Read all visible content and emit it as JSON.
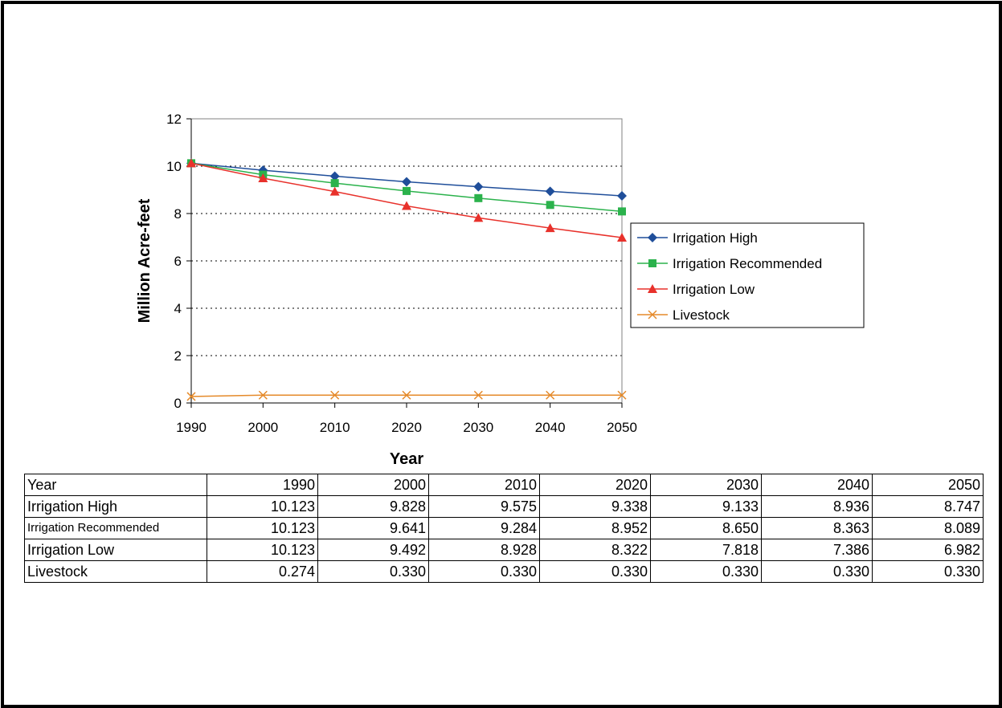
{
  "chart_data": {
    "type": "line",
    "x": [
      1990,
      2000,
      2010,
      2020,
      2030,
      2040,
      2050
    ],
    "xlabel": "Year",
    "ylabel": "Million Acre-feet",
    "ylim": [
      0,
      12
    ],
    "yticks": [
      0,
      2,
      4,
      6,
      8,
      10,
      12
    ],
    "grid": "horizontal dotted",
    "legend_position": "right",
    "series": [
      {
        "name": "Irrigation High",
        "color": "#1F4E9A",
        "marker": "diamond",
        "values": [
          10.123,
          9.828,
          9.575,
          9.338,
          9.133,
          8.936,
          8.747
        ]
      },
      {
        "name": "Irrigation Recommended",
        "color": "#2BB24C",
        "marker": "square",
        "values": [
          10.123,
          9.641,
          9.284,
          8.952,
          8.65,
          8.363,
          8.089
        ]
      },
      {
        "name": "Irrigation Low",
        "color": "#E8312B",
        "marker": "triangle",
        "values": [
          10.123,
          9.492,
          8.928,
          8.322,
          7.818,
          7.386,
          6.982
        ]
      },
      {
        "name": "Livestock",
        "color": "#E58A2A",
        "marker": "x",
        "values": [
          0.274,
          0.33,
          0.33,
          0.33,
          0.33,
          0.33,
          0.33
        ]
      }
    ]
  },
  "table": {
    "header": {
      "label": "Year",
      "cells": [
        "1990",
        "2000",
        "2010",
        "2020",
        "2030",
        "2040",
        "2050"
      ]
    },
    "rows": [
      {
        "label": "Irrigation High",
        "cells": [
          "10.123",
          "9.828",
          "9.575",
          "9.338",
          "9.133",
          "8.936",
          "8.747"
        ]
      },
      {
        "label": "Irrigation Recommended",
        "cells": [
          "10.123",
          "9.641",
          "9.284",
          "8.952",
          "8.650",
          "8.363",
          "8.089"
        ]
      },
      {
        "label": "Irrigation Low",
        "cells": [
          "10.123",
          "9.492",
          "8.928",
          "8.322",
          "7.818",
          "7.386",
          "6.982"
        ]
      },
      {
        "label": "Livestock",
        "cells": [
          "0.274",
          "0.330",
          "0.330",
          "0.330",
          "0.330",
          "0.330",
          "0.330"
        ]
      }
    ]
  }
}
